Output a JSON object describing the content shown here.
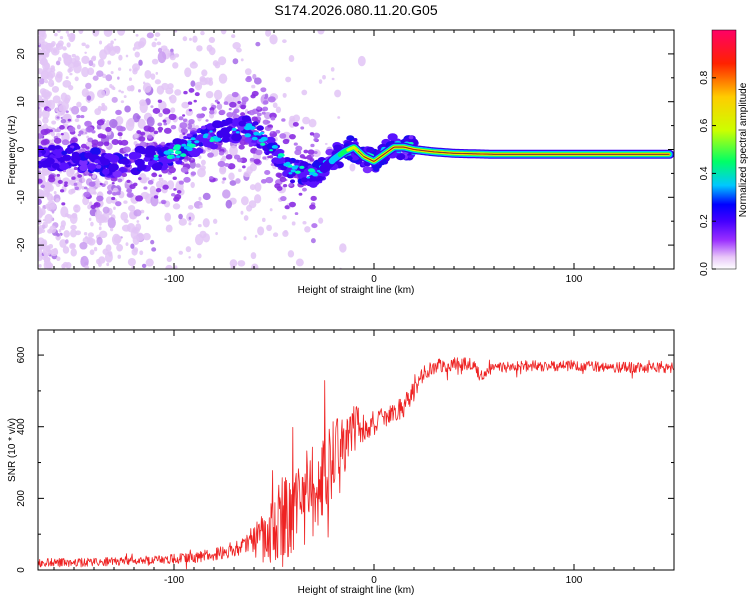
{
  "title": "S174.2026.080.11.20.G05",
  "chart_data": [
    {
      "type": "heatmap",
      "title": "S174.2026.080.11.20.G05",
      "xlabel": "Height of straight line (km)",
      "ylabel": "Frequency (Hz)",
      "xlim": [
        -168,
        150
      ],
      "ylim": [
        -25,
        25
      ],
      "xticks": [
        -100,
        0,
        100
      ],
      "xtick_labels": [
        "-100",
        "0",
        "100"
      ],
      "yticks": [
        -20,
        -10,
        0,
        10,
        20
      ],
      "ytick_labels": [
        "-20",
        "-10",
        "0",
        "10",
        "20"
      ],
      "ridge_centerline": {
        "x": [
          -165,
          -155,
          -145,
          -135,
          -125,
          -115,
          -105,
          -95,
          -85,
          -75,
          -68,
          -62,
          -55,
          -50,
          -45,
          -40,
          -35,
          -30,
          -25,
          -20,
          -15,
          -10,
          -5,
          0,
          5,
          10,
          15,
          20,
          30,
          40,
          60,
          80,
          100,
          120,
          150
        ],
        "y": [
          -2,
          -1.5,
          -2,
          -3,
          -3,
          -2,
          -1.5,
          0,
          2.5,
          3.5,
          4.5,
          4,
          2,
          0,
          -3,
          -4.5,
          -5,
          -5,
          -4,
          -2,
          -0.5,
          0.5,
          -1.5,
          -2.5,
          -1,
          0.5,
          0.5,
          0,
          -0.5,
          -0.8,
          -1,
          -1,
          -1,
          -1,
          -1
        ]
      },
      "colorbar": {
        "label": "Normalized spectral amplitude",
        "range": [
          0.0,
          1.0
        ],
        "ticks": [
          0.0,
          0.2,
          0.4,
          0.6,
          0.8
        ],
        "tick_labels": [
          "0.0",
          "0.2",
          "0.4",
          "0.6",
          "0.8"
        ],
        "colors": [
          "#ffffff",
          "#e8c6f8",
          "#9b30ff",
          "#4400ff",
          "#0000ff",
          "#00c8ff",
          "#00ff66",
          "#ccff00",
          "#ffcc00",
          "#ff2200",
          "#ff0066"
        ]
      }
    },
    {
      "type": "line",
      "xlabel": "Height of straight line (km)",
      "ylabel": "SNR (10 * v/v)",
      "xlim": [
        -168,
        150
      ],
      "ylim": [
        0,
        670
      ],
      "xticks": [
        -100,
        0,
        100
      ],
      "xtick_labels": [
        "-100",
        "0",
        "100"
      ],
      "yticks": [
        0,
        200,
        400,
        600
      ],
      "ytick_labels": [
        "0",
        "200",
        "400",
        "600"
      ],
      "color": "#ee2222",
      "series": [
        {
          "name": "SNR",
          "x": [
            -168,
            -140,
            -110,
            -90,
            -75,
            -65,
            -55,
            -50,
            -45,
            -42,
            -38,
            -32,
            -28,
            -22,
            -18,
            -14,
            -10,
            -6,
            -2,
            2,
            6,
            10,
            14,
            18,
            22,
            25,
            28,
            32,
            40,
            50,
            53,
            60,
            80,
            100,
            130,
            150
          ],
          "baseline": [
            20,
            22,
            28,
            35,
            50,
            70,
            90,
            110,
            140,
            160,
            180,
            210,
            240,
            280,
            320,
            360,
            390,
            400,
            410,
            420,
            430,
            440,
            450,
            480,
            520,
            550,
            560,
            570,
            575,
            575,
            540,
            565,
            570,
            570,
            565,
            565
          ],
          "noise": [
            12,
            12,
            12,
            15,
            20,
            25,
            70,
            90,
            140,
            120,
            110,
            140,
            120,
            130,
            110,
            80,
            70,
            50,
            40,
            30,
            30,
            30,
            30,
            30,
            25,
            20,
            20,
            20,
            18,
            18,
            15,
            15,
            15,
            15,
            15,
            15
          ]
        }
      ]
    }
  ]
}
